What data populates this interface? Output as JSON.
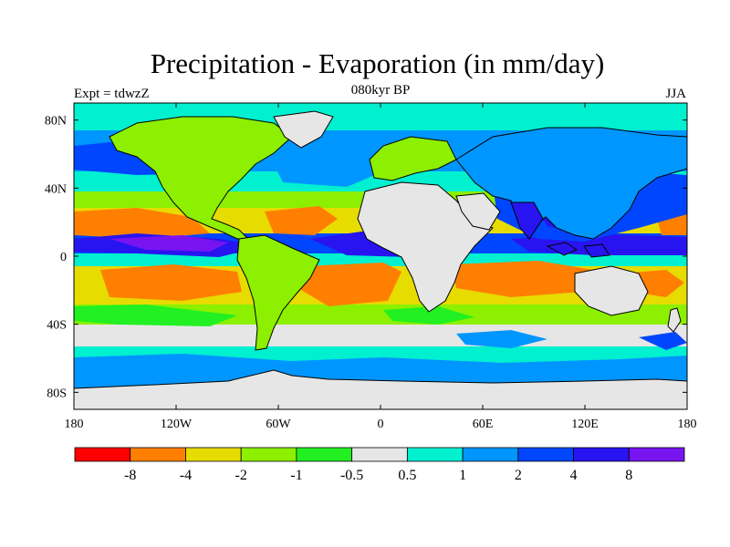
{
  "title": "Precipitation - Evaporation (in mm/day)",
  "subtitle": "080kyr BP",
  "left_string": "Expt = tdwzZ",
  "right_string": "JJA",
  "map": {
    "projection": "cylindrical-equidistant",
    "lon_range": [
      -180,
      180
    ],
    "lat_range": [
      -90,
      90
    ],
    "ocean_color": "#e6e6e6"
  },
  "lat_labels": [
    "80N",
    "40N",
    "0",
    "40S",
    "80S"
  ],
  "lon_labels": [
    "180",
    "120W",
    "60W",
    "0",
    "60E",
    "120E",
    "180"
  ],
  "colorbar": {
    "colors": [
      "#ff0000",
      "#ff8000",
      "#e6dc00",
      "#8cf000",
      "#22f022",
      "#e6e6e6",
      "#00f0d0",
      "#0096ff",
      "#0046ff",
      "#2814f0",
      "#7814f0"
    ],
    "labels": [
      "-8",
      "-4",
      "-2",
      "-1",
      "-0.5",
      "0.5",
      "1",
      "2",
      "4",
      "8"
    ]
  }
}
